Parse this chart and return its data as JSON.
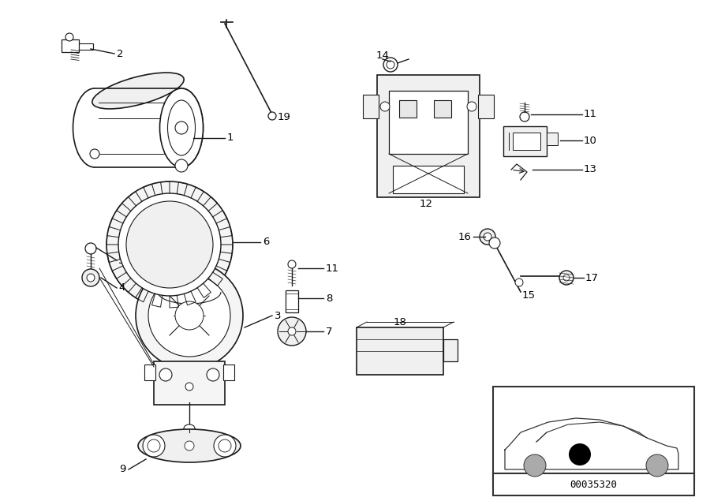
{
  "bg": "#ffffff",
  "lc": "#1a1a1a",
  "lw": 1.0,
  "diagram_id": "00035320",
  "label_fs": 9.5
}
